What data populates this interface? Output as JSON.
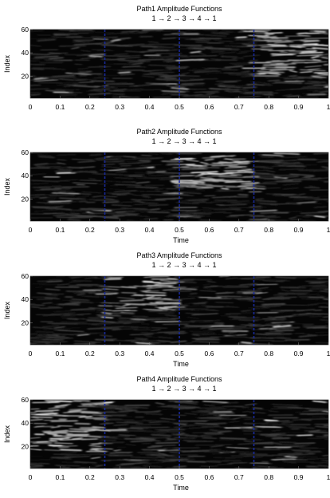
{
  "chart_data": [
    {
      "type": "heatmap",
      "title": "Path1 Amplitude Functions",
      "subtitle": "1 → 2 → 3 → 4 → 1",
      "xlabel": "",
      "ylabel": "Index",
      "xlim": [
        0,
        1
      ],
      "ylim": [
        1,
        60
      ],
      "xticks": [
        "0",
        "0.1",
        "0.2",
        "0.3",
        "0.4",
        "0.5",
        "0.6",
        "0.7",
        "0.8",
        "0.9",
        "1"
      ],
      "yticks": [
        "20",
        "40",
        "60"
      ],
      "transitions": [
        0.25,
        0.5,
        0.75
      ],
      "bright_region": {
        "time": [
          0.75,
          1.0
        ],
        "index": [
          20,
          60
        ]
      },
      "colormap": "gray"
    },
    {
      "type": "heatmap",
      "title": "Path2 Amplitude Functions",
      "subtitle": "1 → 2 → 3 → 4 → 1",
      "xlabel": "Time",
      "ylabel": "Index",
      "xlim": [
        0,
        1
      ],
      "ylim": [
        1,
        60
      ],
      "xticks": [
        "0",
        "0.1",
        "0.2",
        "0.3",
        "0.4",
        "0.5",
        "0.6",
        "0.7",
        "0.8",
        "0.9",
        "1"
      ],
      "yticks": [
        "20",
        "40",
        "60"
      ],
      "transitions": [
        0.25,
        0.5,
        0.75
      ],
      "bright_region": {
        "time": [
          0.5,
          0.75
        ],
        "index": [
          28,
          58
        ]
      },
      "colormap": "gray"
    },
    {
      "type": "heatmap",
      "title": "Path3 Amplitude Functions",
      "subtitle": "1 → 2 → 3 → 4 → 1",
      "xlabel": "Time",
      "ylabel": "Index",
      "xlim": [
        0,
        1
      ],
      "ylim": [
        1,
        60
      ],
      "xticks": [
        "0",
        "0.1",
        "0.2",
        "0.3",
        "0.4",
        "0.5",
        "0.6",
        "0.7",
        "0.8",
        "0.9",
        "1"
      ],
      "yticks": [
        "20",
        "40",
        "60"
      ],
      "transitions": [
        0.25,
        0.5,
        0.75
      ],
      "bright_region": {
        "time": [
          0.25,
          0.5
        ],
        "index": [
          30,
          60
        ]
      },
      "colormap": "gray"
    },
    {
      "type": "heatmap",
      "title": "Path4 Amplitude Functions",
      "subtitle": "1 → 2 → 3 → 4 → 1",
      "xlabel": "Time",
      "ylabel": "Index",
      "xlim": [
        0,
        1
      ],
      "ylim": [
        1,
        60
      ],
      "xticks": [
        "0",
        "0.1",
        "0.2",
        "0.3",
        "0.4",
        "0.5",
        "0.6",
        "0.7",
        "0.8",
        "0.9",
        "1"
      ],
      "yticks": [
        "20",
        "40",
        "60"
      ],
      "transitions": [
        0.25,
        0.5,
        0.75
      ],
      "bright_region": {
        "time": [
          0.0,
          0.25
        ],
        "index": [
          15,
          60
        ]
      },
      "colormap": "gray"
    }
  ],
  "colors": {
    "background": "#ffffff",
    "heatmap_base": "#050505",
    "transition_line": "#1a2a9a",
    "axis": "#000000"
  }
}
